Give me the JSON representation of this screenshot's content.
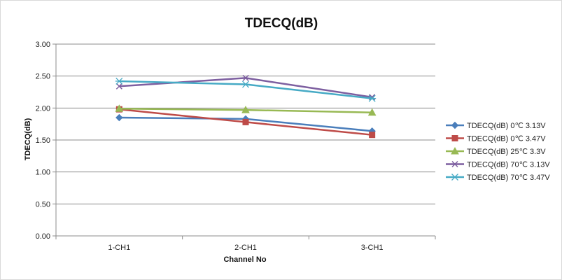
{
  "chart_data": {
    "type": "line",
    "title": "TDECQ(dB)",
    "xlabel": "Channel No",
    "ylabel": "TDECQ(dB)",
    "categories": [
      "1-CH1",
      "2-CH1",
      "3-CH1"
    ],
    "ylim": [
      0,
      3
    ],
    "yticks": [
      "0.00",
      "0.50",
      "1.00",
      "1.50",
      "2.00",
      "2.50",
      "3.00"
    ],
    "ytick_values": [
      0,
      0.5,
      1.0,
      1.5,
      2.0,
      2.5,
      3.0
    ],
    "grid": true,
    "legend_position": "right",
    "series": [
      {
        "name": "TDECQ(dB) 0℃ 3.13V",
        "values": [
          1.85,
          1.83,
          1.64
        ],
        "color": "#4a7ebb",
        "marker": "diamond"
      },
      {
        "name": "TDECQ(dB) 0℃ 3.47V",
        "values": [
          1.98,
          1.78,
          1.58
        ],
        "color": "#be4b48",
        "marker": "square"
      },
      {
        "name": "TDECQ(dB) 25℃ 3.3V",
        "values": [
          1.99,
          1.97,
          1.93
        ],
        "color": "#98b954",
        "marker": "triangle"
      },
      {
        "name": "TDECQ(dB) 70℃ 3.13V",
        "values": [
          2.34,
          2.47,
          2.17
        ],
        "color": "#7d5fa0",
        "marker": "x"
      },
      {
        "name": "TDECQ(dB) 70℃ 3.47V",
        "values": [
          2.42,
          2.37,
          2.15
        ],
        "color": "#46aac5",
        "marker": "star"
      }
    ]
  }
}
